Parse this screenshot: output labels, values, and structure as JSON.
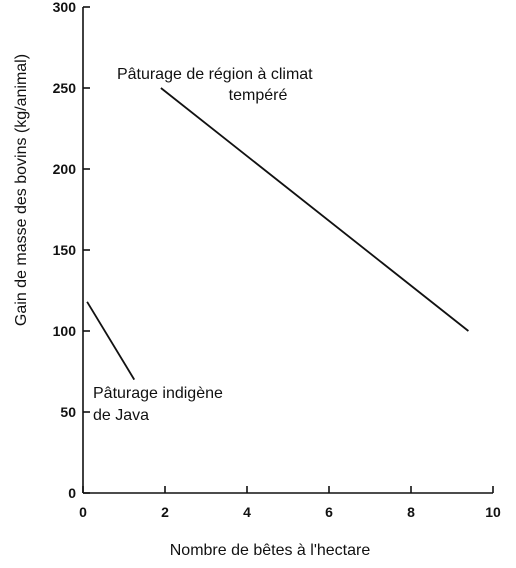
{
  "chart_data": {
    "type": "line",
    "title": "",
    "xlabel": "Nombre de bêtes à l'hectare",
    "ylabel": "Gain de masse des bovins (kg/animal)",
    "xlim": [
      0,
      10
    ],
    "ylim": [
      0,
      300
    ],
    "x_ticks": [
      0,
      2,
      4,
      6,
      8,
      10
    ],
    "y_ticks": [
      0,
      50,
      100,
      150,
      200,
      250,
      300
    ],
    "grid": false,
    "series": [
      {
        "name": "Pâturage de région à climat tempéré",
        "x": [
          1.9,
          9.4
        ],
        "y": [
          250,
          100
        ]
      },
      {
        "name": "Pâturage indigène de Java",
        "x": [
          0.1,
          1.25
        ],
        "y": [
          118,
          70
        ]
      }
    ],
    "annotations": [
      {
        "lines": [
          "Pâturage de région à climat",
          "tempéré"
        ]
      },
      {
        "lines": [
          "Pâturage indigène",
          "de Java"
        ]
      }
    ]
  }
}
